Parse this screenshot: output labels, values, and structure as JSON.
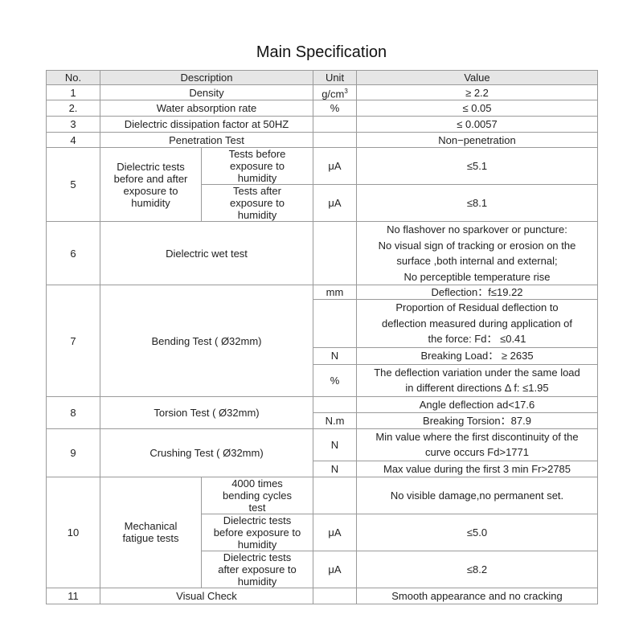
{
  "title": "Main Specification",
  "header": {
    "no": "No.",
    "description": "Description",
    "unit": "Unit",
    "value": "Value"
  },
  "rows": {
    "r1": {
      "no": "1",
      "desc": "Density",
      "unit": "g/cm",
      "unit_sup": "3",
      "value": "≥  2.2"
    },
    "r2": {
      "no": "2.",
      "desc": "Water absorption rate",
      "unit": "%",
      "value": "≤  0.05"
    },
    "r3": {
      "no": "3",
      "desc": "Dielectric dissipation factor at 50HZ",
      "unit": "",
      "value": "≤  0.0057"
    },
    "r4": {
      "no": "4",
      "desc": "Penetration Test",
      "unit": "",
      "value": "Non−penetration"
    },
    "r5": {
      "no": "5",
      "desc": "Dielectric tests\nbefore and after\nexposure to\nhumidity",
      "sub": [
        {
          "desc": "Tests before\nexposure to\nhumidity",
          "unit": "μA",
          "value": "≤5.1"
        },
        {
          "desc": "Tests after\nexposure to\nhumidity",
          "unit": "μA",
          "value": "≤8.1"
        }
      ]
    },
    "r6": {
      "no": "6",
      "desc": "Dielectric wet test",
      "unit": "",
      "value": "No flashover no sparkover or puncture:\nNo visual sign of tracking or erosion on the\nsurface ,both internal and external;\nNo perceptible temperature rise"
    },
    "r7": {
      "no": "7",
      "desc": "Bending Test ( Ø32mm)",
      "sub": [
        {
          "unit": "mm",
          "value": "Deflection：f≤19.22"
        },
        {
          "unit": "",
          "value": "Proportion of Residual deflection to\ndeflection measured during application of\nthe force: Fd： ≤0.41"
        },
        {
          "unit": "N",
          "value": "Breaking Load： ≥  2635"
        },
        {
          "unit": "%",
          "value": "The deflection variation under the same load\nin different directions Δ f: ≤1.95"
        }
      ]
    },
    "r8": {
      "no": "8",
      "desc": "Torsion Test ( Ø32mm)",
      "sub": [
        {
          "unit": "",
          "value": "Angle deflection    ad<17.6"
        },
        {
          "unit": "N.m",
          "value": "Breaking Torsion：87.9"
        }
      ]
    },
    "r9": {
      "no": "9",
      "desc": "Crushing Test ( Ø32mm)",
      "sub": [
        {
          "unit": "N",
          "value": "Min value where the first discontinuity of the\ncurve occurs Fd>1771"
        },
        {
          "unit": "N",
          "value": "Max value during the first 3 min      Fr>2785"
        }
      ]
    },
    "r10": {
      "no": "10",
      "desc": "Mechanical\nfatigue tests",
      "sub": [
        {
          "desc": "4000 times\nbending cycles\ntest",
          "unit": "",
          "value": "No visible damage,no permanent set."
        },
        {
          "desc": "Dielectric tests\nbefore exposure to\nhumidity",
          "unit": "μA",
          "value": "≤5.0"
        },
        {
          "desc": "Dielectric tests\nafter exposure to\nhumidity",
          "unit": "μA",
          "value": "≤8.2"
        }
      ]
    },
    "r11": {
      "no": "11",
      "desc": "Visual Check",
      "unit": "",
      "value": "Smooth appearance and no cracking"
    }
  }
}
